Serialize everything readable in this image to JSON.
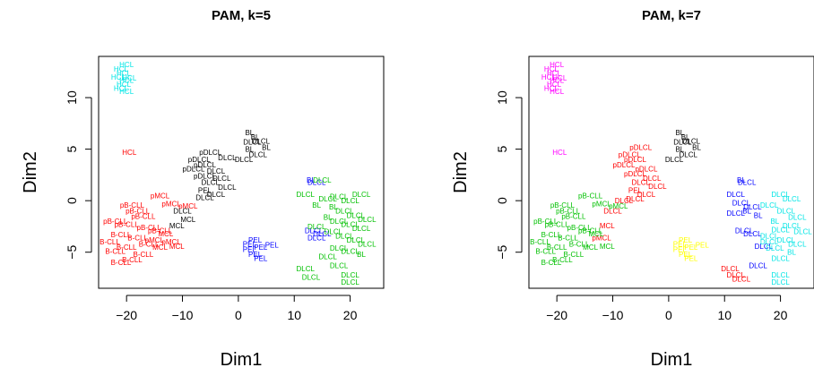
{
  "chart_data": [
    {
      "type": "scatter",
      "title": "PAM, k=5",
      "xlabel": "Dim1",
      "ylabel": "Dim2",
      "xlim": [
        -25,
        26
      ],
      "ylim": [
        -8.5,
        14
      ],
      "xticks": [
        "-20",
        "-10",
        "0",
        "10",
        "20"
      ],
      "yticks": [
        "-5",
        "0",
        "5",
        "10"
      ],
      "clusters": [
        {
          "color": "#00e5e5",
          "points": [
            [
              -20,
              13.2,
              "HCL"
            ],
            [
              -21,
              12.8,
              "HCL"
            ],
            [
              -20.5,
              12.4,
              "HCL"
            ],
            [
              -21.5,
              12.0,
              "HCL"
            ],
            [
              -20,
              11.7,
              "HCL"
            ],
            [
              -20.5,
              11.3,
              "HCL"
            ],
            [
              -21,
              10.9,
              "HCL"
            ],
            [
              -20,
              10.6,
              "HCL"
            ],
            [
              -19.5,
              11.9,
              "HCL"
            ]
          ]
        },
        {
          "color": "#ff0000",
          "points": [
            [
              -19.5,
              4.7,
              "HCL"
            ],
            [
              -9,
              -0.5,
              "pMCL"
            ],
            [
              -14,
              0.5,
              "pMCL"
            ],
            [
              -12,
              -0.3,
              "pMCL"
            ],
            [
              -19,
              -0.4,
              "pB-CLL"
            ],
            [
              -18,
              -1.0,
              "pB-CLL"
            ],
            [
              -22,
              -2.0,
              "pB-CLL"
            ],
            [
              -17,
              -1.5,
              "pB-CLL"
            ],
            [
              -20,
              -2.3,
              "pB-CLL"
            ],
            [
              -16,
              -2.6,
              "pB-CLL"
            ],
            [
              -14,
              -2.9,
              "pB-CLL"
            ],
            [
              -21,
              -3.3,
              "B-CLL"
            ],
            [
              -18,
              -3.6,
              "B-CLL"
            ],
            [
              -23,
              -4.0,
              "B-CLL"
            ],
            [
              -16,
              -4.2,
              "B-CLL"
            ],
            [
              -20,
              -4.5,
              "B-CLL"
            ],
            [
              -22,
              -4.9,
              "B-CLL"
            ],
            [
              -17,
              -5.2,
              "B-CLL"
            ],
            [
              -19,
              -5.7,
              "B-CLL"
            ],
            [
              -21,
              -6.0,
              "B-CLL"
            ],
            [
              -15,
              -3.8,
              "pMCL"
            ],
            [
              -12,
              -4.0,
              "pMCL"
            ],
            [
              -14,
              -4.5,
              "MCL"
            ],
            [
              -11,
              -4.4,
              "MCL"
            ],
            [
              -13,
              -3.2,
              "MCL"
            ]
          ]
        },
        {
          "color": "#000000",
          "points": [
            [
              2,
              6.6,
              "BL"
            ],
            [
              3,
              6.2,
              "BL"
            ],
            [
              2.5,
              5.7,
              "DLCL"
            ],
            [
              4,
              5.8,
              "DLCL"
            ],
            [
              5,
              5.2,
              "BL"
            ],
            [
              2,
              5.0,
              "BL"
            ],
            [
              3.5,
              4.5,
              "DLCL"
            ],
            [
              1,
              4.0,
              "DLCL"
            ],
            [
              -2,
              4.2,
              "DLCL"
            ],
            [
              -5,
              4.7,
              "pDLCL"
            ],
            [
              -7,
              4.0,
              "pDLCL"
            ],
            [
              -6,
              3.5,
              "pDLCL"
            ],
            [
              -8,
              3.1,
              "pDLCL"
            ],
            [
              -4,
              2.9,
              "DLCL"
            ],
            [
              -6,
              2.4,
              "pDLCL"
            ],
            [
              -3,
              2.2,
              "DLCL"
            ],
            [
              -5,
              1.8,
              "DLCL"
            ],
            [
              -2,
              1.3,
              "DLCL"
            ],
            [
              -6,
              1.0,
              "PEL"
            ],
            [
              -4,
              0.6,
              "DLCL"
            ],
            [
              -6,
              0.3,
              "DLCL"
            ],
            [
              -10,
              -1.0,
              "DLCL"
            ],
            [
              -9,
              -1.8,
              "MCL"
            ],
            [
              -11,
              -2.4,
              "MCL"
            ]
          ]
        },
        {
          "color": "#0000ff",
          "points": [
            [
              13,
              2.0,
              "BL"
            ],
            [
              14,
              1.8,
              "DLCL"
            ],
            [
              13.5,
              -2.9,
              "DLCL"
            ],
            [
              15,
              -3.2,
              "DLCL"
            ],
            [
              14,
              -3.6,
              "DLCL"
            ],
            [
              3,
              -3.8,
              "PEL"
            ],
            [
              2,
              -4.2,
              "PEL"
            ],
            [
              4,
              -4.5,
              "PEL"
            ],
            [
              6,
              -4.3,
              "PEL"
            ],
            [
              2,
              -4.7,
              "PEL"
            ],
            [
              3,
              -5.2,
              "PEL"
            ],
            [
              4,
              -5.6,
              "PEL"
            ]
          ]
        },
        {
          "color": "#00c000",
          "points": [
            [
              15,
              2.0,
              "DLCL"
            ],
            [
              12,
              0.6,
              "DLCL"
            ],
            [
              14,
              -0.4,
              "BL"
            ],
            [
              16,
              0.2,
              "DLCL"
            ],
            [
              18,
              0.4,
              "DLCL"
            ],
            [
              20,
              0.0,
              "DLCL"
            ],
            [
              22,
              0.6,
              "DLCL"
            ],
            [
              17,
              -0.6,
              "BL"
            ],
            [
              19,
              -1.0,
              "DLCL"
            ],
            [
              21,
              -1.4,
              "DLCL"
            ],
            [
              23,
              -1.8,
              "DLCL"
            ],
            [
              16,
              -1.6,
              "BL"
            ],
            [
              18,
              -2.0,
              "DLCL"
            ],
            [
              20,
              -2.3,
              "DLCL"
            ],
            [
              22,
              -2.7,
              "DLCL"
            ],
            [
              17,
              -3.0,
              "DLCL"
            ],
            [
              19,
              -3.4,
              "DLCL"
            ],
            [
              21,
              -3.8,
              "DLCL"
            ],
            [
              23,
              -4.2,
              "DLCL"
            ],
            [
              18,
              -4.6,
              "DLCL"
            ],
            [
              20,
              -4.9,
              "DLCL"
            ],
            [
              22,
              -5.2,
              "BL"
            ],
            [
              16,
              -5.4,
              "DLCL"
            ],
            [
              18,
              -6.3,
              "DLCL"
            ],
            [
              12,
              -6.6,
              "DLCL"
            ],
            [
              13,
              -7.4,
              "DLCL"
            ],
            [
              20,
              -7.2,
              "DLCL"
            ],
            [
              20,
              -7.9,
              "DLCL"
            ],
            [
              14,
              -2.5,
              "DLCL"
            ]
          ]
        }
      ]
    },
    {
      "type": "scatter",
      "title": "PAM, k=7",
      "xlabel": "Dim1",
      "ylabel": "Dim2",
      "xlim": [
        -25,
        26
      ],
      "ylim": [
        -8.5,
        14
      ],
      "xticks": [
        "-20",
        "-10",
        "0",
        "10",
        "20"
      ],
      "yticks": [
        "-5",
        "0",
        "5",
        "10"
      ],
      "clusters": [
        {
          "color": "#ff00ff",
          "points": [
            [
              -20,
              13.2,
              "HCL"
            ],
            [
              -21,
              12.8,
              "HCL"
            ],
            [
              -20.5,
              12.4,
              "HCL"
            ],
            [
              -21.5,
              12.0,
              "HCL"
            ],
            [
              -20,
              11.7,
              "HCL"
            ],
            [
              -20.5,
              11.3,
              "HCL"
            ],
            [
              -21,
              10.9,
              "HCL"
            ],
            [
              -20,
              10.6,
              "HCL"
            ],
            [
              -19.5,
              11.9,
              "HCL"
            ],
            [
              -19.5,
              4.7,
              "HCL"
            ]
          ]
        },
        {
          "color": "#ff0000",
          "points": [
            [
              -5,
              5.2,
              "pDLCL"
            ],
            [
              -7,
              4.5,
              "pDLCL"
            ],
            [
              -6,
              4.0,
              "pDLCL"
            ],
            [
              -8,
              3.5,
              "pDLCL"
            ],
            [
              -4,
              3.1,
              "pDLCL"
            ],
            [
              -6,
              2.6,
              "pDLCL"
            ],
            [
              -3,
              2.2,
              "DLCL"
            ],
            [
              -5,
              1.8,
              "DLCL"
            ],
            [
              -2,
              1.4,
              "DLCL"
            ],
            [
              -6,
              1.0,
              "PEL"
            ],
            [
              -4,
              0.6,
              "DLCL"
            ],
            [
              -6,
              0.2,
              "DLCL"
            ],
            [
              -8,
              0.0,
              "DLCL"
            ],
            [
              -10,
              -1.0,
              "DLCL"
            ],
            [
              -11,
              -2.4,
              "MCL"
            ],
            [
              -12,
              -3.6,
              "pMCL"
            ],
            [
              11,
              -6.6,
              "DLCL"
            ],
            [
              12,
              -7.2,
              "DLCL"
            ],
            [
              13,
              -7.6,
              "DLCL"
            ]
          ]
        },
        {
          "color": "#000000",
          "points": [
            [
              2,
              6.6,
              "BL"
            ],
            [
              3,
              6.2,
              "BL"
            ],
            [
              2.5,
              5.7,
              "DLCL"
            ],
            [
              4,
              5.8,
              "DLCL"
            ],
            [
              5,
              5.2,
              "BL"
            ],
            [
              2,
              5.0,
              "BL"
            ],
            [
              3.5,
              4.5,
              "DLCL"
            ],
            [
              1,
              4.0,
              "DLCL"
            ]
          ]
        },
        {
          "color": "#00c000",
          "points": [
            [
              -9,
              -0.5,
              "pMCL"
            ],
            [
              -14,
              0.5,
              "pB-CLL"
            ],
            [
              -12,
              -0.3,
              "pMCL"
            ],
            [
              -19,
              -0.4,
              "pB-CLL"
            ],
            [
              -18,
              -1.0,
              "pB-CLL"
            ],
            [
              -22,
              -2.0,
              "pB-CLL"
            ],
            [
              -17,
              -1.5,
              "pB-CLL"
            ],
            [
              -20,
              -2.3,
              "pB-CLL"
            ],
            [
              -16,
              -2.6,
              "pB-CLL"
            ],
            [
              -14,
              -2.9,
              "pB-CLL"
            ],
            [
              -21,
              -3.3,
              "B-CLL"
            ],
            [
              -18,
              -3.6,
              "B-CLL"
            ],
            [
              -23,
              -4.0,
              "B-CLL"
            ],
            [
              -16,
              -4.2,
              "B-CLL"
            ],
            [
              -20,
              -4.5,
              "B-CLL"
            ],
            [
              -22,
              -4.9,
              "B-CLL"
            ],
            [
              -17,
              -5.2,
              "B-CLL"
            ],
            [
              -19,
              -5.7,
              "B-CLL"
            ],
            [
              -21,
              -6.0,
              "B-CLL"
            ],
            [
              -14,
              -4.5,
              "MCL"
            ],
            [
              -11,
              -4.4,
              "MCL"
            ],
            [
              -13,
              -3.2,
              "MCL"
            ]
          ]
        },
        {
          "color": "#0000ff",
          "points": [
            [
              13,
              2.0,
              "BL"
            ],
            [
              14,
              1.8,
              "DLCL"
            ],
            [
              12,
              0.6,
              "DLCL"
            ],
            [
              13,
              -0.2,
              "DLCL"
            ],
            [
              15,
              -0.6,
              "DLCL"
            ],
            [
              12,
              -1.2,
              "DLCL"
            ],
            [
              14,
              -1.0,
              "BL"
            ],
            [
              16,
              -1.4,
              "BL"
            ],
            [
              13.5,
              -2.9,
              "DLCL"
            ],
            [
              15,
              -3.2,
              "DLCL"
            ],
            [
              17,
              -4.4,
              "DLCL"
            ],
            [
              16,
              -6.3,
              "DLCL"
            ]
          ]
        },
        {
          "color": "#ffff00",
          "points": [
            [
              3,
              -3.8,
              "PEL"
            ],
            [
              2,
              -4.2,
              "PEL"
            ],
            [
              4,
              -4.5,
              "PEL"
            ],
            [
              6,
              -4.3,
              "PEL"
            ],
            [
              2,
              -4.7,
              "PEL"
            ],
            [
              3,
              -5.2,
              "PEL"
            ],
            [
              4,
              -5.6,
              "PEL"
            ]
          ]
        },
        {
          "color": "#00e5e5",
          "points": [
            [
              20,
              0.6,
              "DLCL"
            ],
            [
              22,
              0.2,
              "DLCL"
            ],
            [
              18,
              -0.4,
              "DLCL"
            ],
            [
              21,
              -1.0,
              "DLCL"
            ],
            [
              23,
              -1.6,
              "DLCL"
            ],
            [
              19,
              -2.0,
              "BL"
            ],
            [
              22,
              -2.4,
              "DLCL"
            ],
            [
              20,
              -2.8,
              "DLCL"
            ],
            [
              24,
              -3.0,
              "DLCL"
            ],
            [
              18,
              -3.4,
              "DLCL"
            ],
            [
              21,
              -3.8,
              "DLCL"
            ],
            [
              23,
              -4.2,
              "DLCL"
            ],
            [
              19,
              -4.6,
              "DLCL"
            ],
            [
              22,
              -5.0,
              "BL"
            ],
            [
              20,
              -5.6,
              "DLCL"
            ],
            [
              20,
              -7.2,
              "DLCL"
            ],
            [
              20,
              -7.9,
              "DLCL"
            ],
            [
              18,
              -4.0,
              "DLCL"
            ]
          ]
        }
      ]
    }
  ]
}
